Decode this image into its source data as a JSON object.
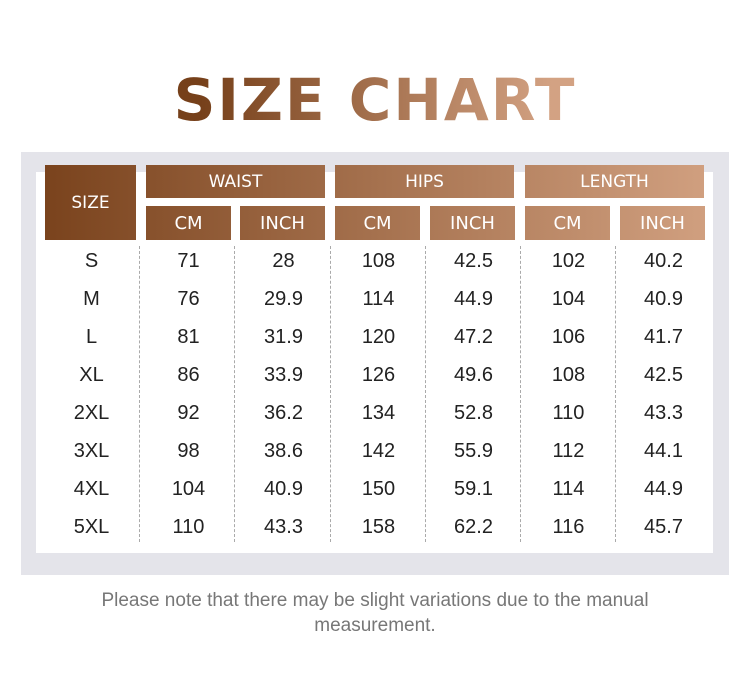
{
  "title": "SIZE CHART",
  "headers": {
    "size": "SIZE",
    "groups": [
      "WAIST",
      "HIPS",
      "LENGTH"
    ],
    "units": [
      "CM",
      "INCH",
      "CM",
      "INCH",
      "CM",
      "INCH"
    ]
  },
  "rows": [
    [
      "S",
      "71",
      "28",
      "108",
      "42.5",
      "102",
      "40.2"
    ],
    [
      "M",
      "76",
      "29.9",
      "114",
      "44.9",
      "104",
      "40.9"
    ],
    [
      "L",
      "81",
      "31.9",
      "120",
      "47.2",
      "106",
      "41.7"
    ],
    [
      "XL",
      "86",
      "33.9",
      "126",
      "49.6",
      "108",
      "42.5"
    ],
    [
      "2XL",
      "92",
      "36.2",
      "134",
      "52.8",
      "110",
      "43.3"
    ],
    [
      "3XL",
      "98",
      "38.6",
      "142",
      "55.9",
      "112",
      "44.1"
    ],
    [
      "4XL",
      "104",
      "40.9",
      "150",
      "59.1",
      "114",
      "44.9"
    ],
    [
      "5XL",
      "110",
      "43.3",
      "158",
      "62.2",
      "116",
      "45.7"
    ]
  ],
  "note": "Please note that there may be slight variations due to the manual measurement.",
  "colors": {
    "gradient_start": "#7a431d",
    "gradient_end": "#d09f7f",
    "frame": "#e4e4ea"
  }
}
